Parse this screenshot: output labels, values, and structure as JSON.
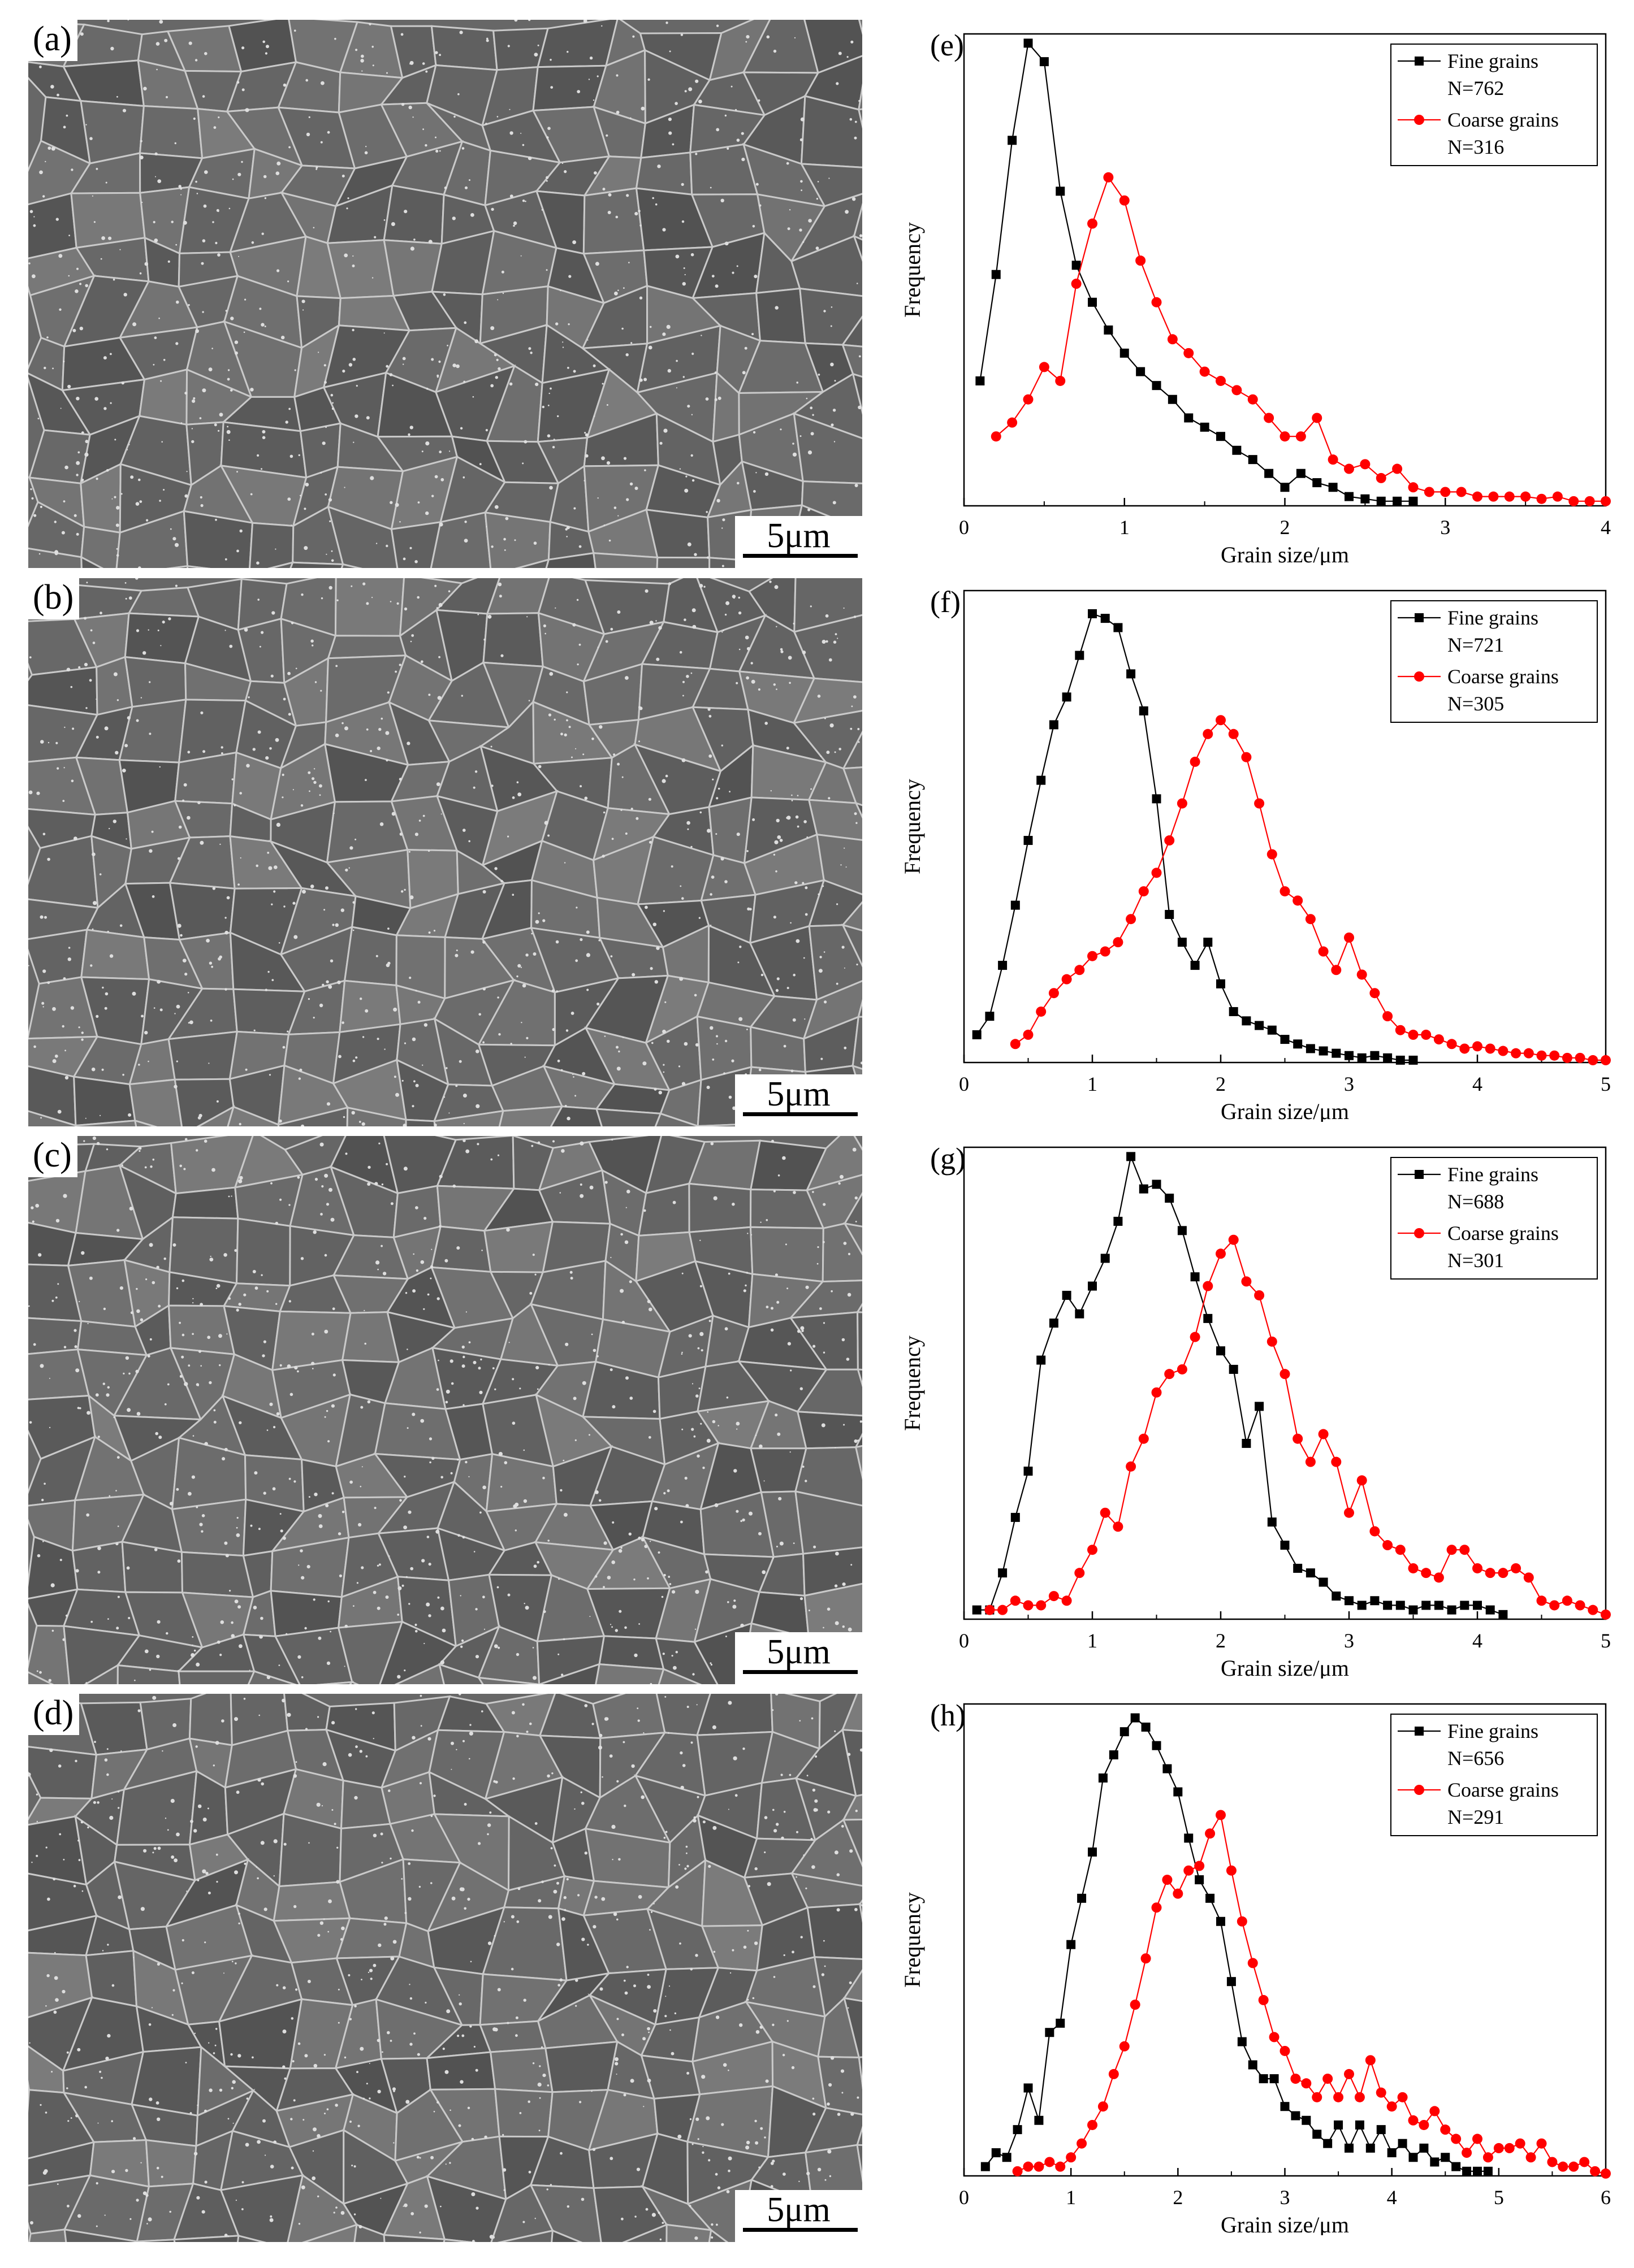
{
  "figure": {
    "micrographs": [
      {
        "label": "(a)",
        "scale": "5μm"
      },
      {
        "label": "(b)",
        "scale": "5μm"
      },
      {
        "label": "(c)",
        "scale": "5μm"
      },
      {
        "label": "(d)",
        "scale": "5μm"
      }
    ]
  },
  "chart_data": [
    {
      "panel": "(e)",
      "type": "line",
      "xlabel": "Grain size/μm",
      "ylabel": "Frequency",
      "xlim": [
        0,
        4
      ],
      "xticks": [
        0,
        1,
        2,
        3,
        4
      ],
      "ylim": [
        0,
        1.02
      ],
      "legend": "top-right",
      "series": [
        {
          "name": "Fine grains",
          "count": "N=762",
          "color": "#000000",
          "marker": "square",
          "x": [
            0.1,
            0.2,
            0.3,
            0.4,
            0.5,
            0.6,
            0.7,
            0.8,
            0.9,
            1.0,
            1.1,
            1.2,
            1.3,
            1.4,
            1.5,
            1.6,
            1.7,
            1.8,
            1.9,
            2.0,
            2.1,
            2.2,
            2.3,
            2.4,
            2.5,
            2.6,
            2.7,
            2.8
          ],
          "y": [
            0.27,
            0.5,
            0.79,
            1.0,
            0.96,
            0.68,
            0.52,
            0.44,
            0.38,
            0.33,
            0.29,
            0.26,
            0.23,
            0.19,
            0.17,
            0.15,
            0.12,
            0.1,
            0.07,
            0.04,
            0.07,
            0.05,
            0.04,
            0.02,
            0.015,
            0.01,
            0.01,
            0.01
          ]
        },
        {
          "name": "Coarse grains",
          "count": "N=316",
          "color": "#ff0000",
          "marker": "circle",
          "x": [
            0.2,
            0.3,
            0.4,
            0.5,
            0.6,
            0.7,
            0.8,
            0.9,
            1.0,
            1.1,
            1.2,
            1.3,
            1.4,
            1.5,
            1.6,
            1.7,
            1.8,
            1.9,
            2.0,
            2.1,
            2.2,
            2.3,
            2.4,
            2.5,
            2.6,
            2.7,
            2.8,
            2.9,
            3.0,
            3.1,
            3.2,
            3.3,
            3.4,
            3.5,
            3.6,
            3.7,
            3.8,
            3.9,
            4.0
          ],
          "y": [
            0.15,
            0.18,
            0.23,
            0.3,
            0.27,
            0.48,
            0.61,
            0.71,
            0.66,
            0.53,
            0.44,
            0.36,
            0.33,
            0.29,
            0.27,
            0.25,
            0.23,
            0.19,
            0.15,
            0.15,
            0.19,
            0.1,
            0.08,
            0.09,
            0.06,
            0.08,
            0.04,
            0.03,
            0.03,
            0.03,
            0.02,
            0.02,
            0.02,
            0.02,
            0.015,
            0.02,
            0.01,
            0.01,
            0.01
          ]
        }
      ]
    },
    {
      "panel": "(f)",
      "type": "line",
      "xlabel": "Grain size/μm",
      "ylabel": "Frequency",
      "xlim": [
        0,
        5
      ],
      "xticks": [
        0,
        1,
        2,
        3,
        4,
        5
      ],
      "ylim": [
        0,
        1.02
      ],
      "legend": "top-right",
      "series": [
        {
          "name": "Fine grains",
          "count": "N=721",
          "color": "#000000",
          "marker": "square",
          "x": [
            0.1,
            0.2,
            0.3,
            0.4,
            0.5,
            0.6,
            0.7,
            0.8,
            0.9,
            1.0,
            1.1,
            1.2,
            1.3,
            1.4,
            1.5,
            1.6,
            1.7,
            1.8,
            1.9,
            2.0,
            2.1,
            2.2,
            2.3,
            2.4,
            2.5,
            2.6,
            2.7,
            2.8,
            2.9,
            3.0,
            3.1,
            3.2,
            3.3,
            3.4,
            3.5
          ],
          "y": [
            0.06,
            0.1,
            0.21,
            0.34,
            0.48,
            0.61,
            0.73,
            0.79,
            0.88,
            0.97,
            0.96,
            0.94,
            0.84,
            0.76,
            0.57,
            0.32,
            0.26,
            0.21,
            0.26,
            0.17,
            0.11,
            0.09,
            0.08,
            0.07,
            0.05,
            0.04,
            0.03,
            0.025,
            0.02,
            0.015,
            0.01,
            0.015,
            0.01,
            0.005,
            0.005
          ]
        },
        {
          "name": "Coarse grains",
          "count": "N=305",
          "color": "#ff0000",
          "marker": "circle",
          "x": [
            0.4,
            0.5,
            0.6,
            0.7,
            0.8,
            0.9,
            1.0,
            1.1,
            1.2,
            1.3,
            1.4,
            1.5,
            1.6,
            1.7,
            1.8,
            1.9,
            2.0,
            2.1,
            2.2,
            2.3,
            2.4,
            2.5,
            2.6,
            2.7,
            2.8,
            2.9,
            3.0,
            3.1,
            3.2,
            3.3,
            3.4,
            3.5,
            3.6,
            3.7,
            3.8,
            3.9,
            4.0,
            4.1,
            4.2,
            4.3,
            4.4,
            4.5,
            4.6,
            4.7,
            4.8,
            4.9,
            5.0
          ],
          "y": [
            0.04,
            0.06,
            0.11,
            0.15,
            0.18,
            0.2,
            0.23,
            0.24,
            0.26,
            0.31,
            0.37,
            0.41,
            0.48,
            0.56,
            0.65,
            0.71,
            0.74,
            0.71,
            0.66,
            0.56,
            0.45,
            0.37,
            0.35,
            0.31,
            0.24,
            0.2,
            0.27,
            0.19,
            0.15,
            0.1,
            0.07,
            0.06,
            0.06,
            0.05,
            0.04,
            0.03,
            0.035,
            0.03,
            0.025,
            0.02,
            0.02,
            0.015,
            0.015,
            0.01,
            0.01,
            0.005,
            0.005
          ]
        }
      ]
    },
    {
      "panel": "(g)",
      "type": "line",
      "xlabel": "Grain size/μm",
      "ylabel": "Frequency",
      "xlim": [
        0,
        5
      ],
      "xticks": [
        0,
        1,
        2,
        3,
        4,
        5
      ],
      "ylim": [
        0,
        1.02
      ],
      "legend": "top-right",
      "series": [
        {
          "name": "Fine grains",
          "count": "N=688",
          "color": "#000000",
          "marker": "square",
          "x": [
            0.1,
            0.2,
            0.3,
            0.4,
            0.5,
            0.6,
            0.7,
            0.8,
            0.9,
            1.0,
            1.1,
            1.2,
            1.3,
            1.4,
            1.5,
            1.6,
            1.7,
            1.8,
            1.9,
            2.0,
            2.1,
            2.2,
            2.3,
            2.4,
            2.5,
            2.6,
            2.7,
            2.8,
            2.9,
            3.0,
            3.1,
            3.2,
            3.3,
            3.4,
            3.5,
            3.6,
            3.7,
            3.8,
            3.9,
            4.0,
            4.1,
            4.2
          ],
          "y": [
            0.02,
            0.02,
            0.1,
            0.22,
            0.32,
            0.56,
            0.64,
            0.7,
            0.66,
            0.72,
            0.78,
            0.86,
            1.0,
            0.93,
            0.94,
            0.91,
            0.84,
            0.74,
            0.65,
            0.58,
            0.54,
            0.38,
            0.46,
            0.21,
            0.16,
            0.11,
            0.1,
            0.08,
            0.05,
            0.04,
            0.03,
            0.04,
            0.03,
            0.03,
            0.02,
            0.03,
            0.03,
            0.02,
            0.03,
            0.03,
            0.02,
            0.01
          ]
        },
        {
          "name": "Coarse grains",
          "count": "N=301",
          "color": "#ff0000",
          "marker": "circle",
          "x": [
            0.2,
            0.3,
            0.4,
            0.5,
            0.6,
            0.7,
            0.8,
            0.9,
            1.0,
            1.1,
            1.2,
            1.3,
            1.4,
            1.5,
            1.6,
            1.7,
            1.8,
            1.9,
            2.0,
            2.1,
            2.2,
            2.3,
            2.4,
            2.5,
            2.6,
            2.7,
            2.8,
            2.9,
            3.0,
            3.1,
            3.2,
            3.3,
            3.4,
            3.5,
            3.6,
            3.7,
            3.8,
            3.9,
            4.0,
            4.1,
            4.2,
            4.3,
            4.4,
            4.5,
            4.6,
            4.7,
            4.8,
            4.9,
            5.0
          ],
          "y": [
            0.02,
            0.02,
            0.04,
            0.03,
            0.03,
            0.05,
            0.04,
            0.1,
            0.15,
            0.23,
            0.2,
            0.33,
            0.39,
            0.49,
            0.53,
            0.54,
            0.61,
            0.72,
            0.79,
            0.82,
            0.73,
            0.7,
            0.6,
            0.53,
            0.39,
            0.34,
            0.4,
            0.34,
            0.23,
            0.3,
            0.19,
            0.16,
            0.15,
            0.11,
            0.1,
            0.09,
            0.15,
            0.15,
            0.11,
            0.1,
            0.1,
            0.11,
            0.09,
            0.04,
            0.03,
            0.04,
            0.03,
            0.02,
            0.01
          ]
        }
      ]
    },
    {
      "panel": "(h)",
      "type": "line",
      "xlabel": "Grain size/μm",
      "ylabel": "Frequency",
      "xlim": [
        0,
        6
      ],
      "xticks": [
        0,
        1,
        2,
        3,
        4,
        5,
        6
      ],
      "ylim": [
        0,
        1.02
      ],
      "legend": "top-right",
      "series": [
        {
          "name": "Fine grains",
          "count": "N=656",
          "color": "#000000",
          "marker": "square",
          "x": [
            0.2,
            0.3,
            0.4,
            0.5,
            0.6,
            0.7,
            0.8,
            0.9,
            1.0,
            1.1,
            1.2,
            1.3,
            1.4,
            1.5,
            1.6,
            1.7,
            1.8,
            1.9,
            2.0,
            2.1,
            2.2,
            2.3,
            2.4,
            2.5,
            2.6,
            2.7,
            2.8,
            2.9,
            3.0,
            3.1,
            3.2,
            3.3,
            3.4,
            3.5,
            3.6,
            3.7,
            3.8,
            3.9,
            4.0,
            4.1,
            4.2,
            4.3,
            4.4,
            4.5,
            4.6,
            4.7,
            4.8,
            4.9
          ],
          "y": [
            0.02,
            0.05,
            0.04,
            0.1,
            0.19,
            0.12,
            0.31,
            0.33,
            0.5,
            0.6,
            0.7,
            0.86,
            0.91,
            0.96,
            0.99,
            0.97,
            0.93,
            0.88,
            0.83,
            0.73,
            0.64,
            0.6,
            0.55,
            0.42,
            0.29,
            0.24,
            0.21,
            0.21,
            0.15,
            0.13,
            0.12,
            0.09,
            0.07,
            0.11,
            0.06,
            0.11,
            0.06,
            0.1,
            0.05,
            0.07,
            0.04,
            0.06,
            0.03,
            0.04,
            0.02,
            0.01,
            0.01,
            0.01
          ]
        },
        {
          "name": "Coarse grains",
          "count": "N=291",
          "color": "#ff0000",
          "marker": "circle",
          "x": [
            0.5,
            0.6,
            0.7,
            0.8,
            0.9,
            1.0,
            1.1,
            1.2,
            1.3,
            1.4,
            1.5,
            1.6,
            1.7,
            1.8,
            1.9,
            2.0,
            2.1,
            2.2,
            2.3,
            2.4,
            2.5,
            2.6,
            2.7,
            2.8,
            2.9,
            3.0,
            3.1,
            3.2,
            3.3,
            3.4,
            3.5,
            3.6,
            3.7,
            3.8,
            3.9,
            4.0,
            4.1,
            4.2,
            4.3,
            4.4,
            4.5,
            4.6,
            4.7,
            4.8,
            4.9,
            5.0,
            5.1,
            5.2,
            5.3,
            5.4,
            5.5,
            5.6,
            5.7,
            5.8,
            5.9,
            6.0
          ],
          "y": [
            0.01,
            0.02,
            0.02,
            0.03,
            0.02,
            0.04,
            0.07,
            0.11,
            0.15,
            0.22,
            0.28,
            0.37,
            0.47,
            0.58,
            0.64,
            0.61,
            0.66,
            0.67,
            0.74,
            0.78,
            0.66,
            0.55,
            0.46,
            0.38,
            0.3,
            0.27,
            0.21,
            0.2,
            0.17,
            0.21,
            0.17,
            0.22,
            0.17,
            0.25,
            0.18,
            0.15,
            0.17,
            0.12,
            0.11,
            0.14,
            0.1,
            0.08,
            0.05,
            0.08,
            0.04,
            0.06,
            0.06,
            0.07,
            0.04,
            0.07,
            0.03,
            0.02,
            0.02,
            0.03,
            0.01,
            0.005
          ]
        }
      ]
    }
  ]
}
